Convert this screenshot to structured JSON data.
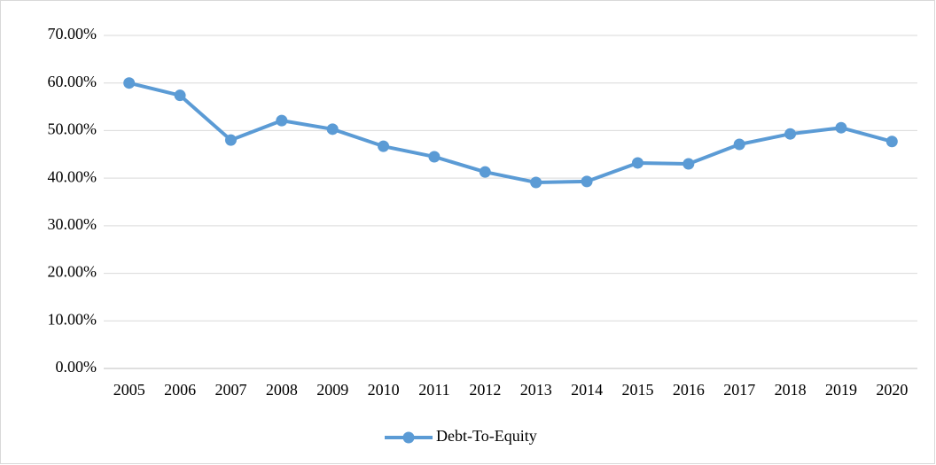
{
  "chart_data": {
    "type": "line",
    "categories": [
      "2005",
      "2006",
      "2007",
      "2008",
      "2009",
      "2010",
      "2011",
      "2012",
      "2013",
      "2014",
      "2015",
      "2016",
      "2017",
      "2018",
      "2019",
      "2020"
    ],
    "series": [
      {
        "name": "Debt-To-Equity",
        "color": "#5b9bd5",
        "values": [
          60.0,
          57.4,
          48.0,
          52.1,
          50.3,
          46.7,
          44.5,
          41.3,
          39.1,
          39.3,
          43.2,
          43.0,
          47.1,
          49.3,
          50.6,
          47.7
        ]
      }
    ],
    "ylim": [
      0,
      70
    ],
    "yticks": [
      {
        "value": 0,
        "label": "0.00%"
      },
      {
        "value": 10,
        "label": "10.00%"
      },
      {
        "value": 20,
        "label": "20.00%"
      },
      {
        "value": 30,
        "label": "30.00%"
      },
      {
        "value": 40,
        "label": "40.00%"
      },
      {
        "value": 50,
        "label": "50.00%"
      },
      {
        "value": 60,
        "label": "60.00%"
      },
      {
        "value": 70,
        "label": "70.00%"
      }
    ],
    "grid": true,
    "legend": "bottom"
  }
}
